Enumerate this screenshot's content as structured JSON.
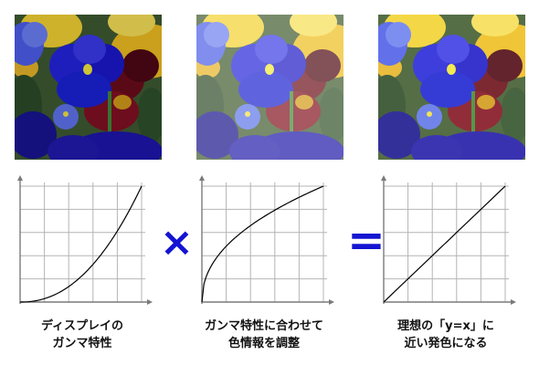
{
  "operators": {
    "times": "×",
    "equals": "="
  },
  "captions": [
    {
      "line1": "ディスプレイの",
      "line2": "ガンマ特性"
    },
    {
      "line1": "ガンマ特性に合わせて",
      "line2": "色情報を調整"
    },
    {
      "line1": "理想の「y=x」に",
      "line2": "近い発色になる"
    }
  ],
  "chart_data": [
    {
      "type": "line",
      "title": "",
      "xlabel": "",
      "ylabel": "",
      "xlim": [
        0,
        1
      ],
      "ylim": [
        0,
        1
      ],
      "grid": true,
      "curve": "y = x^2.2"
    },
    {
      "type": "line",
      "title": "",
      "xlabel": "",
      "ylabel": "",
      "xlim": [
        0,
        1
      ],
      "ylim": [
        0,
        1
      ],
      "grid": true,
      "curve": "y = x^(1/2.2)"
    },
    {
      "type": "line",
      "title": "",
      "xlabel": "",
      "ylabel": "",
      "xlim": [
        0,
        1
      ],
      "ylim": [
        0,
        1
      ],
      "grid": true,
      "curve": "y = x"
    }
  ],
  "colors": {
    "operator": "#1414d2",
    "grid": "#b4b4b4",
    "axis": "#7a7a7a",
    "curve": "#000000"
  }
}
